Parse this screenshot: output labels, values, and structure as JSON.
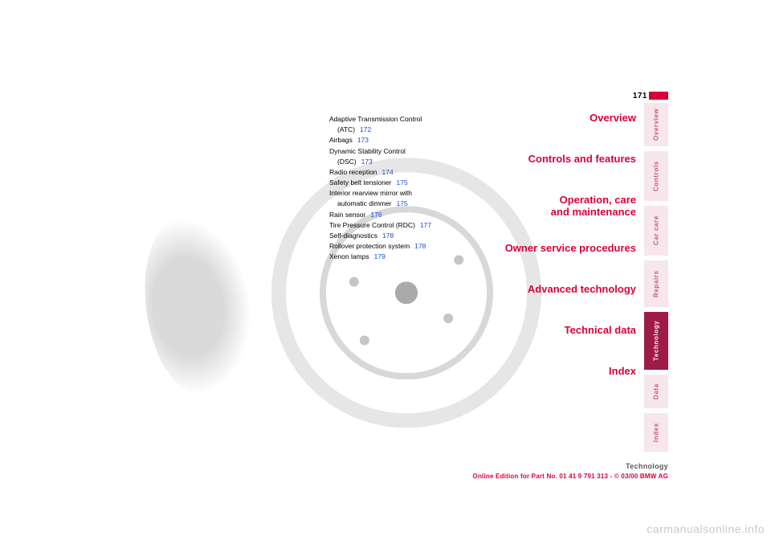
{
  "page_number": "171",
  "colors": {
    "accent": "#d9003a",
    "link": "#1a4fd6",
    "tab_inactive_bg": "#f7e6ec",
    "tab_inactive_fg": "#c4607c",
    "tab_active_bg": "#9e1b45",
    "tab_active_fg": "#f7e6ec",
    "watermark": "#c9c9c9"
  },
  "toc": [
    {
      "label": "Adaptive Transmission Control",
      "indent": false
    },
    {
      "label": "(ATC)",
      "page": "172",
      "indent": true
    },
    {
      "label": "Airbags",
      "page": "173",
      "indent": false
    },
    {
      "label": "Dynamic Stability Control",
      "indent": false
    },
    {
      "label": "(DSC)",
      "page": "173",
      "indent": true
    },
    {
      "label": "Radio reception",
      "page": "174",
      "indent": false
    },
    {
      "label": "Safety belt tensioner",
      "page": "175",
      "indent": false
    },
    {
      "label": "Interior rearview mirror with",
      "indent": false
    },
    {
      "label": "automatic dimmer",
      "page": "175",
      "indent": true
    },
    {
      "label": "Rain sensor",
      "page": "176",
      "indent": false
    },
    {
      "label": "Tire Pressure Control (RDC)",
      "page": "177",
      "indent": false
    },
    {
      "label": "Self-diagnostics",
      "page": "178",
      "indent": false
    },
    {
      "label": "Rollover protection system",
      "page": "178",
      "indent": false
    },
    {
      "label": "Xenon lamps",
      "page": "179",
      "indent": false
    }
  ],
  "sections": [
    {
      "lines": [
        "Overview"
      ]
    },
    {
      "lines": [
        "Controls and features"
      ]
    },
    {
      "lines": [
        "Operation, care",
        "and maintenance"
      ]
    },
    {
      "lines": [
        "Owner service procedures"
      ]
    },
    {
      "lines": [
        "Advanced technology"
      ]
    },
    {
      "lines": [
        "Technical data"
      ]
    },
    {
      "lines": [
        "Index"
      ]
    }
  ],
  "tabs": [
    {
      "label": "Overview",
      "cls": "t-ov",
      "active": false
    },
    {
      "label": "Controls",
      "cls": "t-co",
      "active": false
    },
    {
      "label": "Car care",
      "cls": "t-cc",
      "active": false
    },
    {
      "label": "Repairs",
      "cls": "t-re",
      "active": false
    },
    {
      "label": "Technology",
      "cls": "t-te",
      "active": true
    },
    {
      "label": "Data",
      "cls": "t-da",
      "active": false
    },
    {
      "label": "Index",
      "cls": "t-ix",
      "active": false
    }
  ],
  "footer": {
    "title": "Technology",
    "sub": "Online Edition for Part No. 01 41 9 791 313 - © 03/00 BMW AG"
  },
  "watermark": "carmanualsonline.info",
  "typography": {
    "toc_fontsize": 8.5,
    "section_fontsize": 13,
    "tab_fontsize": 8,
    "pagenum_fontsize": 10
  }
}
